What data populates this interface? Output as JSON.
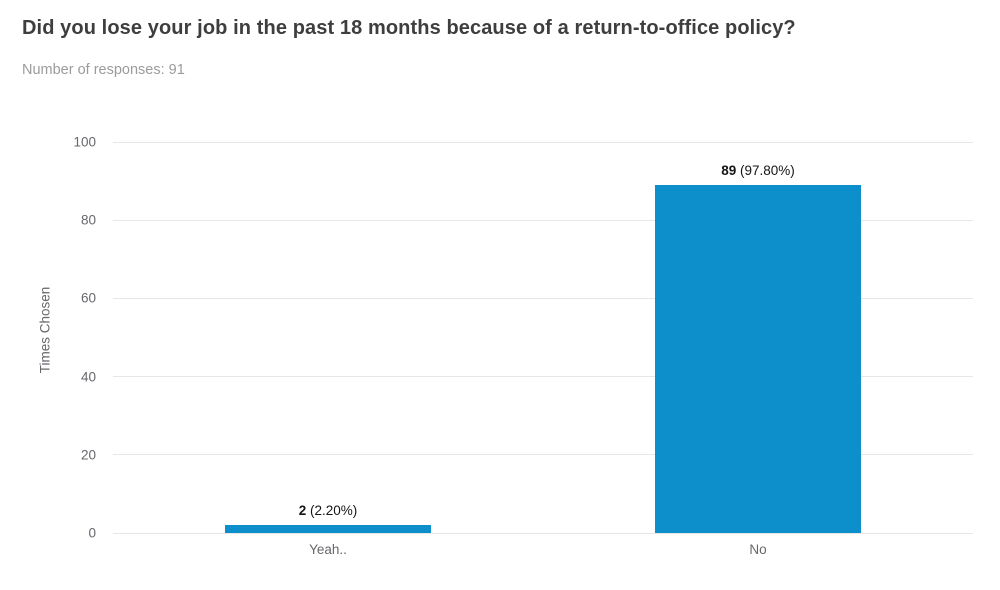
{
  "header": {
    "title": "Did you lose your job in the past 18 months because of a return-to-office policy?",
    "subtitle": "Number of responses: 91"
  },
  "chart_data": {
    "type": "bar",
    "title": "Did you lose your job in the past 18 months because of a return-to-office policy?",
    "subtitle": "Number of responses: 91",
    "categories": [
      "Yeah..",
      "No"
    ],
    "values": [
      2,
      89
    ],
    "value_labels": [
      "2",
      "89"
    ],
    "percent_labels": [
      "(2.20%)",
      "(97.80%)"
    ],
    "xlabel": "",
    "ylabel": "Times Chosen",
    "ylim": [
      0,
      100
    ],
    "yticks": [
      0,
      20,
      40,
      60,
      80,
      100
    ],
    "grid": true,
    "legend": false,
    "bar_color": "#0d8fcc"
  },
  "colors": {
    "background": "#ffffff",
    "title_text": "#3e3e3e",
    "subtitle_text": "#9b9b9b",
    "axis_text": "#67676c",
    "gridline": "#e7e7e7",
    "bar": "#0d8fcc",
    "data_label": "#151515"
  }
}
